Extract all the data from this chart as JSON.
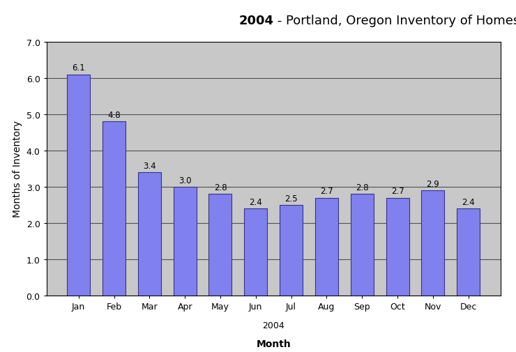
{
  "title_bold": "2004",
  "title_normal": " - Portland, Oregon Inventory of Homes For Sale",
  "months": [
    "Jan",
    "Feb",
    "Mar",
    "Apr",
    "May",
    "Jun",
    "Jul",
    "Aug",
    "Sep",
    "Oct",
    "Nov",
    "Dec"
  ],
  "values": [
    6.1,
    4.8,
    3.4,
    3.0,
    2.8,
    2.4,
    2.5,
    2.7,
    2.8,
    2.7,
    2.9,
    2.4
  ],
  "bar_color": "#8080EE",
  "bar_edgecolor": "#333388",
  "ylabel": "Months of Inventory",
  "xlabel": "Month",
  "xlabel2": "2004",
  "ylim": [
    0.0,
    7.0
  ],
  "yticks": [
    0.0,
    1.0,
    2.0,
    3.0,
    4.0,
    5.0,
    6.0,
    7.0
  ],
  "plot_bg_color": "#C8C8C8",
  "figure_bg_color": "#FFFFFF",
  "grid_color": "#505050",
  "title_fontsize": 13,
  "axis_label_fontsize": 10,
  "tick_label_fontsize": 9,
  "value_label_fontsize": 8.5
}
